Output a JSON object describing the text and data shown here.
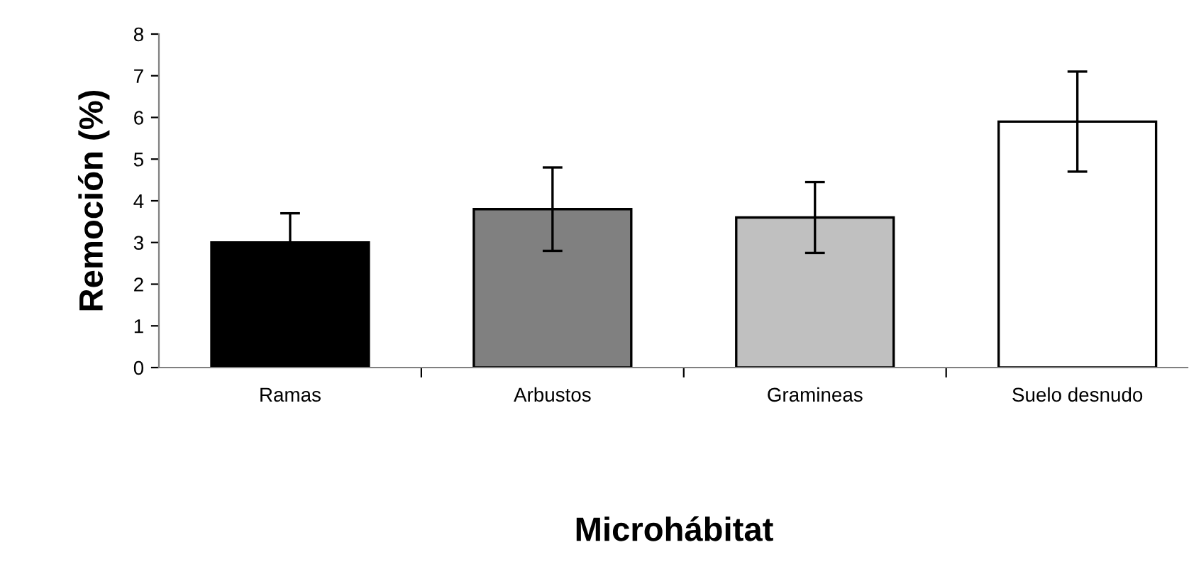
{
  "chart_data": {
    "type": "bar",
    "xlabel": "Microhábitat",
    "ylabel": "Remoción (%)",
    "categories": [
      "Ramas",
      "Arbustos",
      "Gramineas",
      "Suelo desnudo"
    ],
    "values": [
      3.0,
      3.8,
      3.6,
      5.9
    ],
    "errors": [
      0.7,
      1.0,
      0.85,
      1.2
    ],
    "colors": [
      "#000000",
      "#808080",
      "#c0c0c0",
      "#ffffff"
    ],
    "ylim": [
      0,
      8
    ],
    "yticks": [
      0,
      1,
      2,
      3,
      4,
      5,
      6,
      7,
      8
    ],
    "grid": false,
    "legend": false
  }
}
